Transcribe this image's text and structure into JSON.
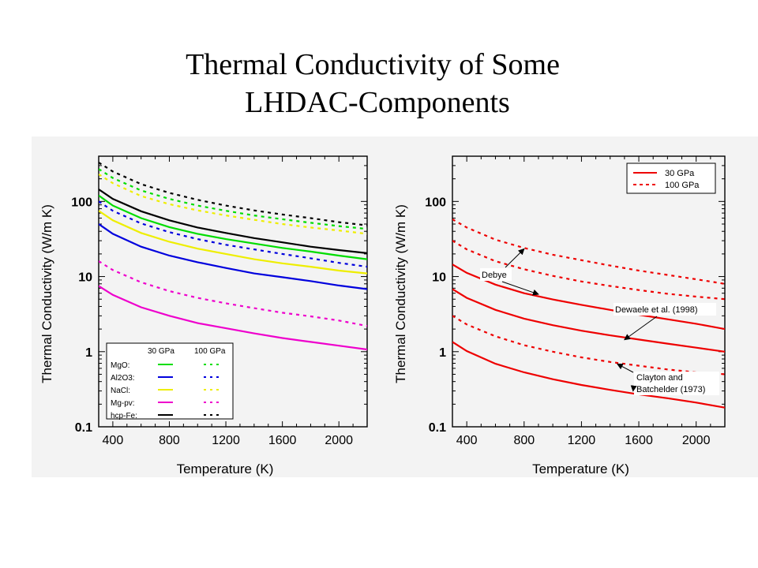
{
  "slide": {
    "title_line1": "Thermal Conductivity of Some",
    "title_line2": "LHDAC-Components"
  },
  "chart_data": [
    {
      "type": "line",
      "log_y": true,
      "xlabel": "Temperature (K)",
      "ylabel": "Thermal Conductivity (W/m K)",
      "xlim": [
        300,
        2200
      ],
      "ylim": [
        0.1,
        400
      ],
      "x_ticks": [
        400,
        800,
        1200,
        1600,
        2000
      ],
      "y_ticks": [
        0.1,
        1,
        10,
        100
      ],
      "y_tick_labels": [
        "0.1",
        "1",
        "10",
        "100"
      ],
      "legend": {
        "position": "bottom-left",
        "column_headers": [
          "30 GPa",
          "100 GPa"
        ],
        "rows": [
          {
            "label": "MgO:",
            "color": "#00dd00"
          },
          {
            "label": "Al2O3:",
            "color": "#0000dd"
          },
          {
            "label": "NaCl:",
            "color": "#eeee00"
          },
          {
            "label": "Mg-pv:",
            "color": "#ee00cc"
          },
          {
            "label": "hcp-Fe:",
            "color": "#000000"
          }
        ]
      },
      "x": [
        300,
        400,
        600,
        800,
        1000,
        1200,
        1400,
        1600,
        1800,
        2000,
        2200
      ],
      "series": [
        {
          "name": "MgO:",
          "pressure": "30 GPa",
          "style": "solid",
          "color": "#00dd00",
          "values": [
            120,
            88,
            60,
            45.5,
            37,
            31.5,
            27.5,
            24,
            21.5,
            19,
            17
          ]
        },
        {
          "name": "MgO:",
          "pressure": "100 GPa",
          "style": "dashed",
          "color": "#00dd00",
          "values": [
            270,
            205,
            140,
            108,
            88,
            75,
            65,
            58,
            52,
            47,
            43
          ]
        },
        {
          "name": "Al2O3:",
          "pressure": "30 GPa",
          "style": "solid",
          "color": "#0000dd",
          "values": [
            50,
            37,
            25,
            19,
            15.5,
            13,
            11,
            9.8,
            8.7,
            7.6,
            6.8
          ]
        },
        {
          "name": "Al2O3:",
          "pressure": "100 GPa",
          "style": "dashed",
          "color": "#0000dd",
          "values": [
            100,
            75,
            51,
            39,
            31.5,
            26.5,
            23,
            20,
            17.5,
            15.2,
            13.5
          ]
        },
        {
          "name": "NaCl:",
          "pressure": "30 GPa",
          "style": "solid",
          "color": "#eeee00",
          "values": [
            75,
            56,
            38,
            29,
            23.5,
            20,
            17,
            15,
            13.5,
            12,
            11
          ]
        },
        {
          "name": "NaCl:",
          "pressure": "100 GPa",
          "style": "dashed",
          "color": "#eeee00",
          "values": [
            230,
            175,
            118,
            92,
            76,
            65,
            57,
            50,
            45,
            41,
            37
          ]
        },
        {
          "name": "Mg-pv:",
          "pressure": "30 GPa",
          "style": "solid",
          "color": "#ee00cc",
          "values": [
            7.5,
            5.7,
            3.9,
            3.0,
            2.4,
            2.05,
            1.75,
            1.52,
            1.35,
            1.2,
            1.07
          ]
        },
        {
          "name": "Mg-pv:",
          "pressure": "100 GPa",
          "style": "dashed",
          "color": "#ee00cc",
          "values": [
            16,
            12.2,
            8.4,
            6.4,
            5.2,
            4.4,
            3.8,
            3.3,
            2.95,
            2.6,
            2.2
          ]
        },
        {
          "name": "hcp-Fe:",
          "pressure": "30 GPa",
          "style": "solid",
          "color": "#000000",
          "values": [
            145,
            108,
            74,
            56,
            45,
            38,
            32.5,
            28.5,
            25,
            22.5,
            20.5
          ]
        },
        {
          "name": "hcp-Fe:",
          "pressure": "100 GPa",
          "style": "dashed",
          "color": "#000000",
          "values": [
            330,
            250,
            170,
            130,
            105,
            88,
            76,
            67,
            60,
            53,
            48
          ]
        }
      ]
    },
    {
      "type": "line",
      "log_y": true,
      "xlabel": "Temperature (K)",
      "ylabel": "Thermal Conductivity (W/m K)",
      "xlim": [
        300,
        2200
      ],
      "ylim": [
        0.1,
        400
      ],
      "x_ticks": [
        400,
        800,
        1200,
        1600,
        2000
      ],
      "y_ticks": [
        0.1,
        1,
        10,
        100
      ],
      "y_tick_labels": [
        "0.1",
        "1",
        "10",
        "100"
      ],
      "legend": {
        "position": "top-right",
        "entries": [
          {
            "label": "30 GPa",
            "style": "solid",
            "color": "#ee0000"
          },
          {
            "label": "100 GPa",
            "style": "dashed",
            "color": "#ee0000"
          }
        ]
      },
      "annotations": [
        {
          "text": "Debye",
          "points_to": [
            "Debye 100 GPa",
            "Debye 30 GPa"
          ]
        },
        {
          "text": "Dewaele et al. (1998)",
          "points_to": [
            "Dewaele 30 GPa"
          ]
        },
        {
          "text": "Clayton and",
          "points_to": []
        },
        {
          "text": "Batchelder (1973)",
          "points_to": [
            "Clayton 100 GPa",
            "Clayton 30 GPa"
          ]
        }
      ],
      "x": [
        300,
        400,
        600,
        800,
        1000,
        1200,
        1400,
        1600,
        1800,
        2000,
        2200
      ],
      "series": [
        {
          "id": "Debye 30 GPa",
          "style": "solid",
          "color": "#ee0000",
          "values": [
            14.5,
            11.2,
            7.8,
            6.0,
            4.95,
            4.2,
            3.6,
            3.1,
            2.7,
            2.35,
            2.0
          ]
        },
        {
          "id": "Debye 100 GPa",
          "style": "dashed",
          "color": "#ee0000",
          "values": [
            58,
            45,
            31,
            24,
            19.5,
            16.5,
            14,
            12,
            10.5,
            9.2,
            8.0
          ]
        },
        {
          "id": "Dewaele 30 GPa",
          "style": "solid",
          "color": "#ee0000",
          "values": [
            6.8,
            5.2,
            3.6,
            2.75,
            2.25,
            1.9,
            1.65,
            1.45,
            1.28,
            1.13,
            1.0
          ]
        },
        {
          "id": "Dewaele 100 GPa",
          "style": "dashed",
          "color": "#ee0000",
          "values": [
            30,
            23,
            16,
            12.5,
            10.2,
            8.6,
            7.5,
            6.6,
            5.9,
            5.4,
            5.0
          ]
        },
        {
          "id": "Clayton 30 GPa",
          "style": "solid",
          "color": "#ee0000",
          "values": [
            1.35,
            1.02,
            0.69,
            0.53,
            0.43,
            0.36,
            0.31,
            0.27,
            0.24,
            0.21,
            0.18
          ]
        },
        {
          "id": "Clayton 100 GPa",
          "style": "dashed",
          "color": "#ee0000",
          "values": [
            3.0,
            2.3,
            1.6,
            1.22,
            1.0,
            0.84,
            0.73,
            0.65,
            0.58,
            0.53,
            0.5
          ]
        }
      ]
    }
  ]
}
